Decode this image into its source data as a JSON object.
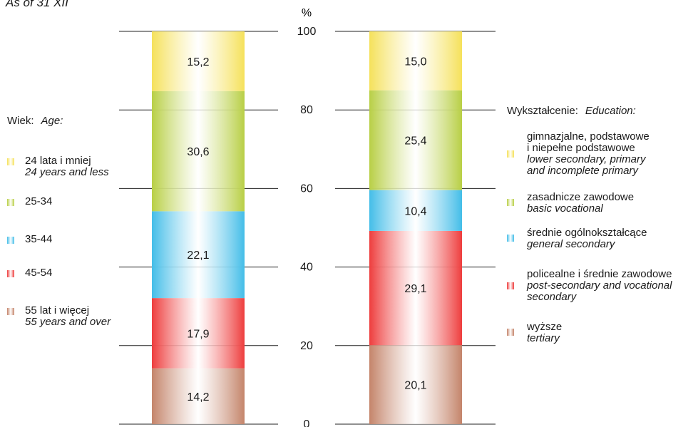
{
  "subtitle": "As of 31 XII",
  "colors": {
    "yellow": "#f5e15a",
    "green": "#b8cf45",
    "blue": "#43bde8",
    "red": "#ee3d3d",
    "brown": "#c4846a"
  },
  "age_legend": {
    "title_pl": "Wiek:",
    "title_en": "Age:",
    "items": [
      {
        "pl": "24 lata i mniej",
        "en": "24 years and less",
        "color": "yellow"
      },
      {
        "pl": "25-34",
        "en": "",
        "color": "green"
      },
      {
        "pl": "35-44",
        "en": "",
        "color": "blue"
      },
      {
        "pl": "45-54",
        "en": "",
        "color": "red"
      },
      {
        "pl": "55 lat i więcej",
        "en": "55 years and over",
        "color": "brown"
      }
    ]
  },
  "education_legend": {
    "title_pl": "Wykształcenie:",
    "title_en": "Education:",
    "items": [
      {
        "pl": [
          "gimnazjalne, podstawowe",
          "i niepełne podstawowe"
        ],
        "en": [
          "lower secondary, primary",
          "and incomplete primary"
        ],
        "color": "yellow"
      },
      {
        "pl": [
          "zasadnicze zawodowe"
        ],
        "en": [
          "basic vocational"
        ],
        "color": "green"
      },
      {
        "pl": [
          "średnie ogólnokształcące"
        ],
        "en": [
          "general secondary"
        ],
        "color": "blue"
      },
      {
        "pl": [
          "policealne i średnie zawodowe"
        ],
        "en": [
          "post-secondary and vocational",
          "secondary"
        ],
        "color": "red"
      },
      {
        "pl": [
          "wyższe"
        ],
        "en": [
          "tertiary"
        ],
        "color": "brown"
      }
    ]
  },
  "chart_data": {
    "type": "bar",
    "stacked": true,
    "ylabel": "%",
    "ylim": [
      0,
      100
    ],
    "yticks": [
      "0",
      "20",
      "40",
      "60",
      "80",
      "100"
    ],
    "stacks": [
      {
        "id": "age",
        "segments": [
          {
            "value": 14.2,
            "label": "14,2",
            "color": "brown"
          },
          {
            "value": 17.9,
            "label": "17,9",
            "color": "red"
          },
          {
            "value": 22.1,
            "label": "22,1",
            "color": "blue"
          },
          {
            "value": 30.6,
            "label": "30,6",
            "color": "green"
          },
          {
            "value": 15.2,
            "label": "15,2",
            "color": "yellow"
          }
        ]
      },
      {
        "id": "education",
        "segments": [
          {
            "value": 20.1,
            "label": "20,1",
            "color": "brown"
          },
          {
            "value": 29.1,
            "label": "29,1",
            "color": "red"
          },
          {
            "value": 10.4,
            "label": "10,4",
            "color": "blue"
          },
          {
            "value": 25.4,
            "label": "25,4",
            "color": "green"
          },
          {
            "value": 15.0,
            "label": "15,0",
            "color": "yellow"
          }
        ]
      }
    ]
  }
}
